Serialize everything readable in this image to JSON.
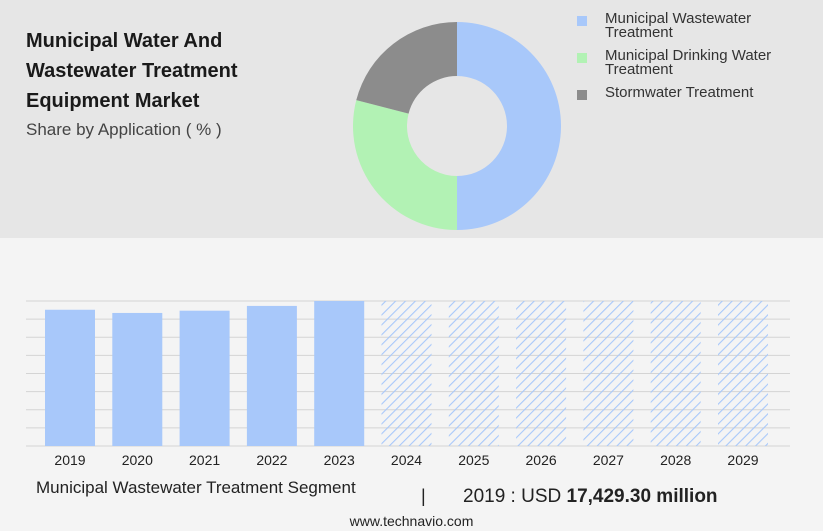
{
  "header": {
    "title": "Municipal Water And Wastewater Treatment Equipment Market",
    "subtitle": "Share by Application ( % )"
  },
  "colors": {
    "municipal_wastewater": "#a8c8fa",
    "municipal_drinking": "#b2f2b4",
    "stormwater": "#8c8c8c",
    "forecast_hatch": "#a8c8fa"
  },
  "chart_data": [
    {
      "type": "pie",
      "donut": true,
      "title": "",
      "legend_position": "top-right",
      "slices": [
        {
          "name": "Municipal Wastewater Treatment",
          "value": 50,
          "color": "#a8c8fa"
        },
        {
          "name": "Municipal Drinking Water Treatment",
          "value": 29,
          "color": "#b2f2b4"
        },
        {
          "name": "Stormwater Treatment",
          "value": 21,
          "color": "#8c8c8c"
        }
      ]
    },
    {
      "type": "bar",
      "title": "",
      "xlabel": "",
      "ylabel": "",
      "grid": true,
      "categories": [
        "2019",
        "2020",
        "2021",
        "2022",
        "2023",
        "2024",
        "2025",
        "2026",
        "2027",
        "2028",
        "2029"
      ],
      "values": [
        17.43,
        17.02,
        17.31,
        17.92,
        18.55,
        18.55,
        18.55,
        18.55,
        18.55,
        18.55,
        18.55
      ],
      "forecast": [
        false,
        false,
        false,
        false,
        false,
        true,
        true,
        true,
        true,
        true,
        true
      ],
      "ylim": [
        0,
        18.55
      ]
    }
  ],
  "footer": {
    "segment_label": "Municipal Wastewater Treatment Segment",
    "separator": "|",
    "value_prefix": "2019 : USD ",
    "value_strong": "17,429.30 million",
    "url": "www.technavio.com"
  }
}
